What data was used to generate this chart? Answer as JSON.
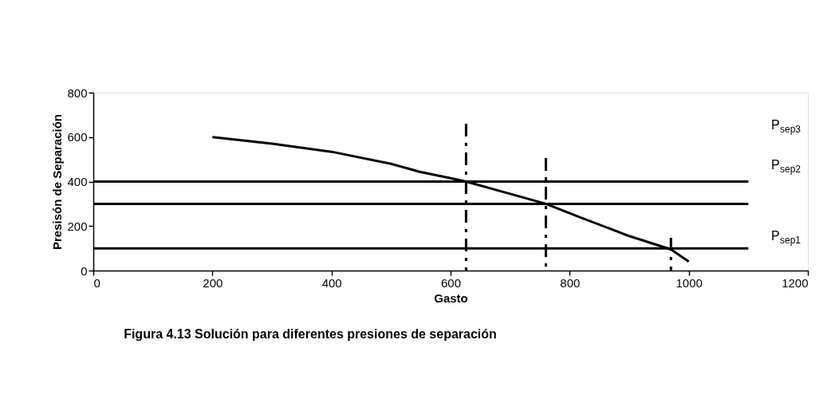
{
  "chart_data": {
    "type": "line",
    "xlabel": "Gasto",
    "ylabel": "Presisón de Separación",
    "xlim": [
      0,
      1200
    ],
    "ylim": [
      0,
      800
    ],
    "xticks": [
      0,
      200,
      400,
      600,
      800,
      1000,
      1200
    ],
    "yticks": [
      0,
      200,
      400,
      600,
      800
    ],
    "grid": false,
    "marker": "none",
    "series": [
      {
        "color": "#000000",
        "line_style": "solid",
        "x": [
          200,
          300,
          400,
          500,
          548,
          600,
          626,
          700,
          760,
          816,
          900,
          970,
          1000
        ],
        "values": [
          600,
          570,
          534,
          480,
          444,
          415,
          400,
          345,
          300,
          241,
          155,
          95,
          40
        ]
      },
      {
        "color": "#000000",
        "line_style": "solid",
        "x": [
          0,
          1100
        ],
        "values": [
          400,
          400
        ]
      },
      {
        "color": "#000000",
        "line_style": "solid",
        "x": [
          0,
          1100
        ],
        "values": [
          300,
          300
        ]
      },
      {
        "color": "#000000",
        "line_style": "solid",
        "x": [
          0,
          1100
        ],
        "values": [
          100,
          100
        ]
      },
      {
        "color": "#000000",
        "line_style": "dashed",
        "x": [
          626,
          626
        ],
        "values": [
          660,
          0
        ]
      },
      {
        "color": "#000000",
        "line_style": "dashed",
        "x": [
          760,
          760
        ],
        "values": [
          506,
          0
        ]
      },
      {
        "color": "#000000",
        "line_style": "dashed",
        "x": [
          970,
          970
        ],
        "values": [
          147,
          0
        ]
      }
    ],
    "annotations": [
      "P$_{sep3}$",
      "P$_{sep2}$",
      "P$_{sep1}$",
      "Figura 4.13 Solución para diferentes presiones de separación"
    ]
  }
}
